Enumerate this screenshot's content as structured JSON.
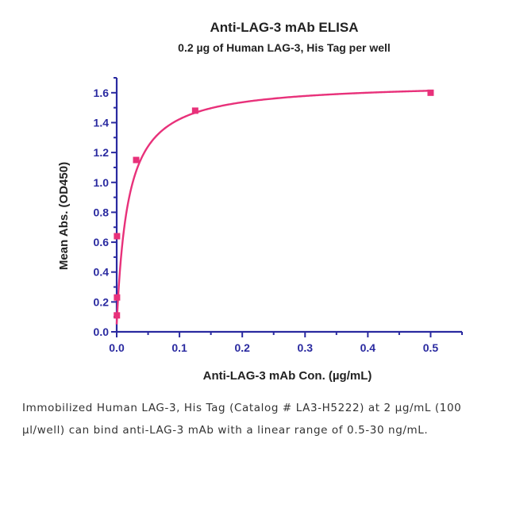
{
  "chart_data": {
    "type": "scatter",
    "title": "Anti-LAG-3 mAb ELISA",
    "subtitle": "0.2 µg of Human LAG-3, His Tag per well",
    "xlabel": "Anti-LAG-3 mAb Con. (µg/mL)",
    "ylabel": "Mean Abs. (OD450)",
    "xlim": [
      0,
      0.55
    ],
    "ylim": [
      0,
      1.7
    ],
    "x_ticks": [
      "0.0",
      "0.1",
      "0.2",
      "0.3",
      "0.4",
      "0.5"
    ],
    "y_ticks": [
      "0.0",
      "0.2",
      "0.4",
      "0.6",
      "0.8",
      "1.0",
      "1.2",
      "1.4",
      "1.6"
    ],
    "grid": false,
    "colors": {
      "axis": "#2a2aa0",
      "series": "#e8317a"
    },
    "series": [
      {
        "points": [
          {
            "x": 0.0003,
            "y": 0.11
          },
          {
            "x": 0.0005,
            "y": 0.23
          },
          {
            "x": 0.0005,
            "y": 0.64
          },
          {
            "x": 0.031,
            "y": 1.15
          },
          {
            "x": 0.125,
            "y": 1.48
          },
          {
            "x": 0.5,
            "y": 1.6
          }
        ],
        "fit": {
          "model": "hyperbolic",
          "bottom": 0.05,
          "top": 1.67,
          "ec50": 0.018
        }
      }
    ]
  },
  "caption": "Immobilized Human LAG-3, His Tag (Catalog # LA3-H5222) at 2 µg/mL (100 µl/well) can bind anti-LAG-3 mAb with a linear range of 0.5-30 ng/mL."
}
